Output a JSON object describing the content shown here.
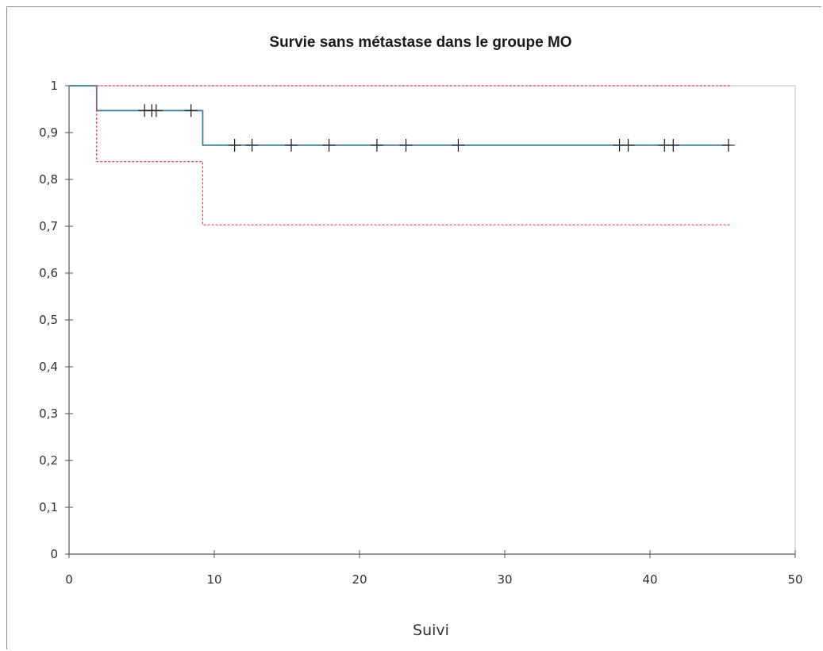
{
  "chart_data": {
    "type": "line",
    "title": "Survie sans métastase dans le groupe MO",
    "xlabel": "Suivi",
    "ylabel": "",
    "xlim": [
      0,
      50
    ],
    "ylim": [
      0,
      1
    ],
    "x_ticks": [
      0,
      10,
      20,
      30,
      40,
      50
    ],
    "x_tick_labels": [
      "0",
      "10",
      "20",
      "30",
      "40",
      "50"
    ],
    "y_ticks": [
      0,
      0.1,
      0.2,
      0.3,
      0.4,
      0.5,
      0.6,
      0.7,
      0.8,
      0.9,
      1
    ],
    "y_tick_labels": [
      "0",
      "0,1",
      "0,2",
      "0,3",
      "0,4",
      "0,5",
      "0,6",
      "0,7",
      "0,8",
      "0,9",
      "1"
    ],
    "grid": false,
    "legend": "none",
    "series": [
      {
        "style": "solid-step",
        "color": "#3b7ea1",
        "x": [
          0,
          1.9,
          1.9,
          9.2,
          9.2,
          45.5
        ],
        "y": [
          1,
          1,
          0.947,
          0.947,
          0.873,
          0.873
        ]
      },
      {
        "style": "dashed-step",
        "color": "#e8474a",
        "x": [
          1.9,
          45.5
        ],
        "y": [
          1,
          1
        ]
      },
      {
        "style": "dashed-step",
        "color": "#e8474a",
        "x": [
          1.9,
          1.9,
          9.2,
          9.2,
          45.5
        ],
        "y": [
          1,
          0.838,
          0.838,
          0.703,
          0.703
        ]
      }
    ],
    "censored_marks": {
      "color": "#1a1a1a",
      "points": [
        {
          "x": 5.2,
          "y": 0.947
        },
        {
          "x": 5.7,
          "y": 0.947
        },
        {
          "x": 6.0,
          "y": 0.947
        },
        {
          "x": 8.4,
          "y": 0.947
        },
        {
          "x": 11.4,
          "y": 0.873
        },
        {
          "x": 12.6,
          "y": 0.873
        },
        {
          "x": 15.3,
          "y": 0.873
        },
        {
          "x": 17.9,
          "y": 0.873
        },
        {
          "x": 21.2,
          "y": 0.873
        },
        {
          "x": 23.2,
          "y": 0.873
        },
        {
          "x": 26.8,
          "y": 0.873
        },
        {
          "x": 37.9,
          "y": 0.873
        },
        {
          "x": 38.5,
          "y": 0.873
        },
        {
          "x": 41.0,
          "y": 0.873
        },
        {
          "x": 41.6,
          "y": 0.873
        },
        {
          "x": 45.4,
          "y": 0.873
        }
      ]
    },
    "colors": {
      "axis": "#555555",
      "plot_border": "#bfbfbf"
    }
  }
}
